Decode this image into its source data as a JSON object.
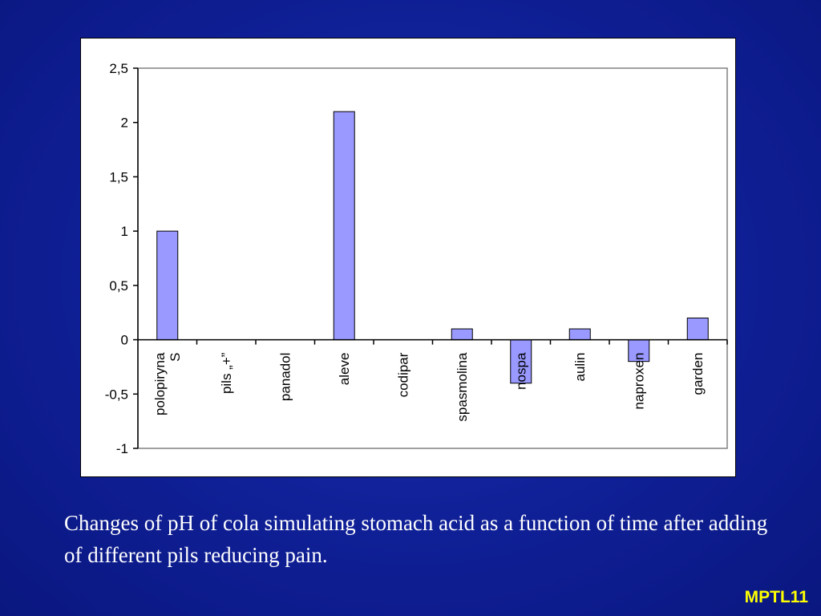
{
  "slide": {
    "caption": "Changes of pH of cola simulating stomach acid as a function of time after adding of different pils reducing pain.",
    "footer_tag": "MPTL11",
    "colors": {
      "background": "#0f1f95",
      "bar_fill": "#9999ff",
      "caption_text": "#ffffff",
      "footer_text": "#ffff00"
    }
  },
  "chart_data": {
    "type": "bar",
    "title": "",
    "xlabel": "",
    "ylabel": "",
    "categories": [
      [
        "polopiryna",
        "S"
      ],
      [
        "pils „+”"
      ],
      [
        "panadol"
      ],
      [
        "aleve"
      ],
      [
        "codipar"
      ],
      [
        "spasmolina"
      ],
      [
        "nospa"
      ],
      [
        "aulin"
      ],
      [
        "naproxen"
      ],
      [
        "garden"
      ]
    ],
    "values": [
      1.0,
      0,
      0,
      2.1,
      0,
      0.1,
      -0.4,
      0.1,
      -0.2,
      0.2
    ],
    "ylim": [
      -1,
      2.5
    ],
    "yticks": [
      2.5,
      2,
      1.5,
      1,
      0.5,
      0,
      -0.5,
      -1
    ],
    "ytick_labels": [
      "2,5",
      "2",
      "1,5",
      "1",
      "0,5",
      "0",
      "-0,5",
      "-1"
    ],
    "grid": false,
    "legend": "none",
    "category_label_rotation": "vertical"
  }
}
